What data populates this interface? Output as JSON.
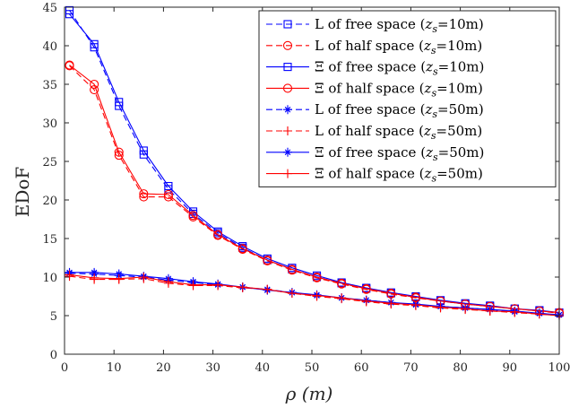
{
  "chart_data": {
    "type": "line",
    "xlabel": "ρ (m)",
    "ylabel": "EDoF",
    "xlim": [
      0,
      100
    ],
    "ylim": [
      0,
      45
    ],
    "xticks": [
      0,
      10,
      20,
      30,
      40,
      50,
      60,
      70,
      80,
      90,
      100
    ],
    "yticks": [
      0,
      5,
      10,
      15,
      20,
      25,
      30,
      35,
      40,
      45
    ],
    "grid": false,
    "legend_position": "top-right",
    "x": [
      1,
      6,
      11,
      16,
      21,
      26,
      31,
      36,
      41,
      46,
      51,
      56,
      61,
      66,
      71,
      76,
      81,
      86,
      91,
      96,
      100
    ],
    "series": [
      {
        "name": "L of free space (z_s=10m)",
        "legend_prefix": "L of free space (",
        "legend_sub": "s",
        "legend_suffix": "=10m)",
        "color": "#0000ff",
        "dash": true,
        "marker": "square",
        "values": [
          44.6,
          39.8,
          32.2,
          25.9,
          21.4,
          18.2,
          15.7,
          13.8,
          12.2,
          11.0,
          10.0,
          9.2,
          8.5,
          7.9,
          7.4,
          6.9,
          6.5,
          6.2,
          5.9,
          5.6,
          5.4
        ]
      },
      {
        "name": "L of half space (z_s=10m)",
        "legend_prefix": "L of half space (",
        "legend_sub": "s",
        "legend_suffix": "=10m)",
        "color": "#ff0000",
        "dash": true,
        "marker": "circle",
        "values": [
          37.4,
          34.3,
          25.8,
          20.4,
          20.4,
          17.8,
          15.4,
          13.6,
          12.1,
          10.9,
          9.9,
          9.1,
          8.4,
          7.8,
          7.3,
          6.9,
          6.5,
          6.2,
          5.9,
          5.6,
          5.3
        ]
      },
      {
        "name": "Ξ of free space (z_s=10m)",
        "legend_prefix": "Ξ of free space (",
        "legend_sub": "s",
        "legend_suffix": "=10m)",
        "color": "#0000ff",
        "dash": false,
        "marker": "square",
        "values": [
          44.1,
          40.2,
          32.7,
          26.4,
          21.8,
          18.5,
          15.9,
          14.0,
          12.4,
          11.2,
          10.2,
          9.3,
          8.6,
          8.0,
          7.5,
          7.0,
          6.6,
          6.3,
          5.9,
          5.7,
          5.4
        ]
      },
      {
        "name": "Ξ of half space (z_s=10m)",
        "legend_prefix": "Ξ of half space (",
        "legend_sub": "s",
        "legend_suffix": "=10m)",
        "color": "#ff0000",
        "dash": false,
        "marker": "circle",
        "values": [
          37.5,
          35.0,
          26.2,
          20.8,
          20.7,
          18.0,
          15.5,
          13.7,
          12.2,
          11.0,
          10.0,
          9.2,
          8.5,
          7.9,
          7.4,
          6.9,
          6.5,
          6.2,
          5.9,
          5.6,
          5.4
        ]
      },
      {
        "name": "L of free space (z_s=50m)",
        "legend_prefix": "L of free space (",
        "legend_sub": "s",
        "legend_suffix": "=50m)",
        "color": "#0000ff",
        "dash": true,
        "marker": "star",
        "values": [
          10.5,
          10.4,
          10.2,
          10.0,
          9.6,
          9.3,
          9.0,
          8.7,
          8.4,
          8.0,
          7.6,
          7.3,
          7.0,
          6.7,
          6.4,
          6.2,
          6.0,
          5.8,
          5.5,
          5.3,
          5.1
        ]
      },
      {
        "name": "L of half space (z_s=50m)",
        "legend_prefix": "L of half space (",
        "legend_sub": "s",
        "legend_suffix": "=50m)",
        "color": "#ff0000",
        "dash": true,
        "marker": "plus",
        "values": [
          10.1,
          9.7,
          9.7,
          9.8,
          9.2,
          8.9,
          8.9,
          8.6,
          8.4,
          7.9,
          7.5,
          7.2,
          6.8,
          6.5,
          6.3,
          6.0,
          5.8,
          5.6,
          5.4,
          5.2,
          5.0
        ]
      },
      {
        "name": "Ξ of free space (z_s=50m)",
        "legend_prefix": "Ξ of free space (",
        "legend_sub": "s",
        "legend_suffix": "=50m)",
        "color": "#0000ff",
        "dash": false,
        "marker": "star",
        "values": [
          10.6,
          10.6,
          10.4,
          10.1,
          9.8,
          9.4,
          9.1,
          8.7,
          8.3,
          8.0,
          7.7,
          7.3,
          7.0,
          6.7,
          6.5,
          6.2,
          6.0,
          5.8,
          5.6,
          5.3,
          5.1
        ]
      },
      {
        "name": "Ξ of half space (z_s=50m)",
        "legend_prefix": "Ξ of half space (",
        "legend_sub": "s",
        "legend_suffix": "=50m)",
        "color": "#ff0000",
        "dash": false,
        "marker": "plus",
        "values": [
          10.3,
          9.9,
          9.8,
          10.0,
          9.4,
          9.0,
          9.0,
          8.7,
          8.4,
          7.9,
          7.6,
          7.3,
          6.9,
          6.6,
          6.4,
          6.1,
          5.9,
          5.6,
          5.5,
          5.2,
          5.0
        ]
      }
    ]
  }
}
